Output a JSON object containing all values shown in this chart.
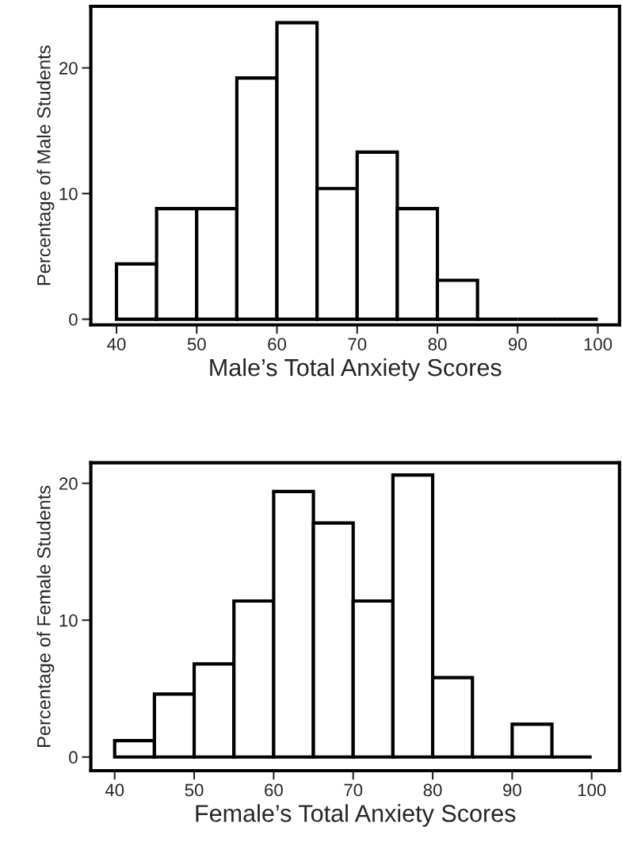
{
  "chart_data": [
    {
      "type": "histogram",
      "xlabel": "Male’s Total Anxiety Scores",
      "ylabel": "Percentage of Male Students",
      "bins": [
        40,
        45,
        50,
        55,
        60,
        65,
        70,
        75,
        80,
        85,
        90,
        95,
        100
      ],
      "values": [
        4.4,
        8.8,
        8.8,
        19.2,
        23.6,
        10.4,
        13.3,
        8.8,
        3.1,
        0,
        0,
        0
      ],
      "colors": [
        "#ffffff",
        "#ffffff",
        "#ffffff",
        "#ffffff",
        "#ffffff",
        "#ffffff",
        "#ffffff",
        "#ffffff",
        "#ffffff",
        "#000000",
        "#000000",
        "#000000"
      ],
      "xlim": [
        36.8,
        102.7
      ],
      "ylim": [
        -0.45,
        24.9
      ],
      "xticks": [
        40,
        50,
        60,
        70,
        80,
        90,
        100
      ],
      "yticks": [
        0,
        10,
        20
      ],
      "grid": false
    },
    {
      "type": "histogram",
      "xlabel": "Female’s Total Anxiety Scores",
      "ylabel": "Percentage of Female Students",
      "bins": [
        40,
        45,
        50,
        55,
        60,
        65,
        70,
        75,
        80,
        85,
        90,
        95,
        100
      ],
      "values": [
        1.2,
        4.6,
        6.8,
        11.4,
        19.4,
        17.1,
        11.4,
        20.6,
        5.8,
        0,
        2.4,
        0
      ],
      "colors": [
        "#ffffff",
        "#ffffff",
        "#ffffff",
        "#ffffff",
        "#ffffff",
        "#ffffff",
        "#ffffff",
        "#ffffff",
        "#ffffff",
        "#000000",
        "#ffffff",
        "#000000"
      ],
      "xlim": [
        37,
        103.5
      ],
      "ylim": [
        -1,
        21.5
      ],
      "xticks": [
        40,
        50,
        60,
        70,
        80,
        90,
        100
      ],
      "yticks": [
        0,
        10,
        20
      ],
      "grid": false
    }
  ]
}
